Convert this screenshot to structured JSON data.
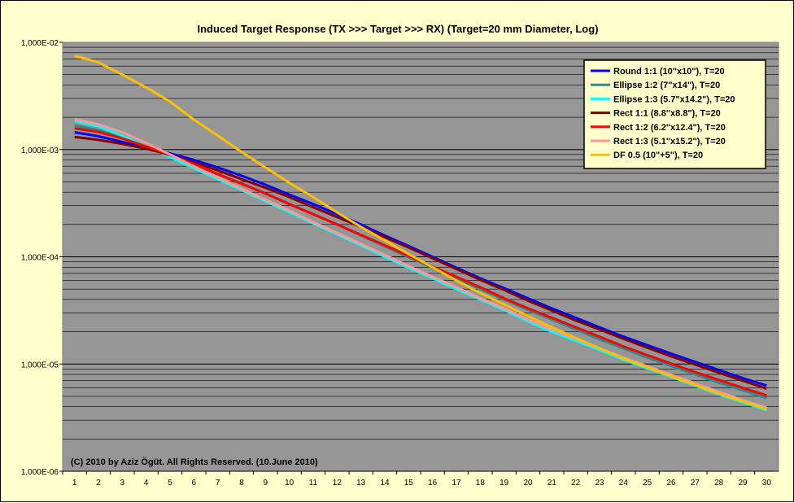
{
  "chart_data": {
    "type": "line",
    "title": "Induced Target Response (TX >>> Target >>> RX) (Target=20 mm Diameter, Log)",
    "xlabel": "",
    "ylabel": "",
    "yscale": "log",
    "ylim": [
      1e-06,
      0.01
    ],
    "yticks": [
      "1,000E-02",
      "1,000E-03",
      "1,000E-04",
      "1,000E-05",
      "1,000E-06"
    ],
    "x": [
      1,
      2,
      3,
      4,
      5,
      6,
      7,
      8,
      9,
      10,
      11,
      12,
      13,
      14,
      15,
      16,
      17,
      18,
      19,
      20,
      21,
      22,
      23,
      24,
      25,
      26,
      27,
      28,
      29,
      30
    ],
    "grid": true,
    "legend_position": "top-right",
    "annotation": "(C) 2010 by Aziz Ögüt. All Rights Reserved. (10.June 2010)",
    "series": [
      {
        "name": "Round 1:1 (10\"x10\"), T=20",
        "color": "#0000ff",
        "values": [
          0.00145,
          0.00133,
          0.00118,
          0.00104,
          0.00092,
          0.0008,
          0.00068,
          0.00057,
          0.00047,
          0.00038,
          0.00031,
          0.00025,
          0.0002,
          0.000158,
          0.000126,
          0.0001,
          7.9e-05,
          6.3e-05,
          5.1e-05,
          4.1e-05,
          3.3e-05,
          2.7e-05,
          2.2e-05,
          1.8e-05,
          1.5e-05,
          1.25e-05,
          1.05e-05,
          8.8e-06,
          7.4e-06,
          6.3e-06
        ]
      },
      {
        "name": "Ellipse 1:2 (7\"x14\"), T=20",
        "color": "#2e8b8b",
        "values": [
          0.00168,
          0.00152,
          0.00128,
          0.00106,
          0.00088,
          0.00072,
          0.00059,
          0.00048,
          0.00039,
          0.00031,
          0.00025,
          0.0002,
          0.000158,
          0.000125,
          9.9e-05,
          7.9e-05,
          6.3e-05,
          5e-05,
          4e-05,
          3.2e-05,
          2.6e-05,
          2.1e-05,
          1.7e-05,
          1.4e-05,
          1.15e-05,
          9.6e-06,
          8e-06,
          6.7e-06,
          5.7e-06,
          4.8e-06
        ]
      },
      {
        "name": "Ellipse 1:3 (5.7\"x14.2\"), T=20",
        "color": "#00ffff",
        "values": [
          0.00185,
          0.00165,
          0.00135,
          0.00107,
          0.00085,
          0.00067,
          0.00053,
          0.00042,
          0.00033,
          0.00026,
          0.000205,
          0.000162,
          0.000128,
          0.0001,
          7.9e-05,
          6.3e-05,
          5e-05,
          4e-05,
          3.2e-05,
          2.5e-05,
          2e-05,
          1.65e-05,
          1.35e-05,
          1.1e-05,
          9.1e-06,
          7.6e-06,
          6.3e-06,
          5.2e-06,
          4.4e-06,
          3.7e-06
        ]
      },
      {
        "name": "Rect 1:1 (8.8\"x8.8\"), T=20",
        "color": "#800000",
        "values": [
          0.00131,
          0.00123,
          0.00113,
          0.00102,
          0.00089,
          0.00076,
          0.00064,
          0.00053,
          0.00044,
          0.00036,
          0.00029,
          0.000235,
          0.00019,
          0.000152,
          0.000122,
          9.7e-05,
          7.7e-05,
          6.1e-05,
          4.9e-05,
          3.9e-05,
          3.15e-05,
          2.55e-05,
          2.1e-05,
          1.72e-05,
          1.42e-05,
          1.18e-05,
          9.9e-06,
          8.3e-06,
          7e-06,
          5.9e-06
        ]
      },
      {
        "name": "Rect 1:2 (6.2\"x12.4\"), T=20",
        "color": "#ff0000",
        "values": [
          0.00158,
          0.00146,
          0.00127,
          0.00107,
          0.00089,
          0.00073,
          0.00059,
          0.00048,
          0.00039,
          0.00031,
          0.00025,
          0.0002,
          0.00016,
          0.000128,
          0.000102,
          8.1e-05,
          6.5e-05,
          5.2e-05,
          4.1e-05,
          3.3e-05,
          2.7e-05,
          2.2e-05,
          1.8e-05,
          1.46e-05,
          1.21e-05,
          1.01e-05,
          8.4e-06,
          7.1e-06,
          6e-06,
          5.1e-06
        ]
      },
      {
        "name": "Rect 1:3 (5.1\"x15.2\"), T=20",
        "color": "#ff9999",
        "values": [
          0.00192,
          0.00172,
          0.00145,
          0.00115,
          0.0009,
          0.0007,
          0.00055,
          0.00043,
          0.00034,
          0.00027,
          0.00021,
          0.000167,
          0.000132,
          0.000104,
          8.2e-05,
          6.5e-05,
          5.2e-05,
          4.1e-05,
          3.3e-05,
          2.6e-05,
          2.1e-05,
          1.72e-05,
          1.4e-05,
          1.15e-05,
          9.5e-06,
          7.9e-06,
          6.6e-06,
          5.5e-06,
          4.6e-06,
          3.9e-06
        ]
      },
      {
        "name": "DF 0.5 (10\"+5\"), T=20",
        "color": "#ffc000",
        "values": [
          0.0075,
          0.0065,
          0.005,
          0.0038,
          0.0028,
          0.0019,
          0.00135,
          0.00095,
          0.00068,
          0.00049,
          0.00036,
          0.00026,
          0.00019,
          0.000142,
          0.000106,
          8e-05,
          6e-05,
          4.6e-05,
          3.6e-05,
          2.8e-05,
          2.2e-05,
          1.75e-05,
          1.4e-05,
          1.13e-05,
          9.3e-06,
          7.7e-06,
          6.4e-06,
          5.3e-06,
          4.5e-06,
          3.8e-06
        ]
      }
    ]
  }
}
